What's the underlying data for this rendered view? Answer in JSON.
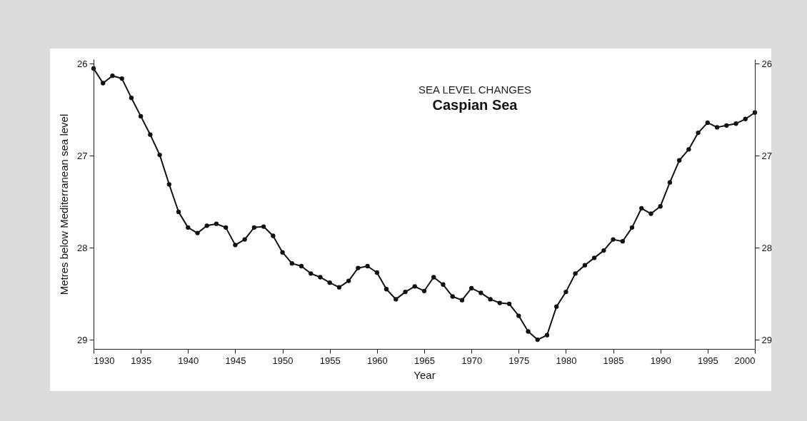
{
  "chart_data": {
    "type": "line",
    "title": "SEA LEVEL CHANGES",
    "subtitle": "Caspian Sea",
    "xlabel": "Year",
    "ylabel": "Metres below Mediterranean sea level",
    "x": [
      1930,
      1931,
      1932,
      1933,
      1934,
      1935,
      1936,
      1937,
      1938,
      1939,
      1940,
      1941,
      1942,
      1943,
      1944,
      1945,
      1946,
      1947,
      1948,
      1949,
      1950,
      1951,
      1952,
      1953,
      1954,
      1955,
      1956,
      1957,
      1958,
      1959,
      1960,
      1961,
      1962,
      1963,
      1964,
      1965,
      1966,
      1967,
      1968,
      1969,
      1970,
      1971,
      1972,
      1973,
      1974,
      1975,
      1976,
      1977,
      1978,
      1979,
      1980,
      1981,
      1982,
      1983,
      1984,
      1985,
      1986,
      1987,
      1988,
      1989,
      1990,
      1991,
      1992,
      1993,
      1994,
      1995,
      1996,
      1997,
      1998,
      1999,
      2000
    ],
    "series": [
      {
        "color": "#111111",
        "values": [
          26.05,
          26.21,
          26.13,
          26.16,
          26.37,
          26.57,
          26.77,
          26.99,
          27.31,
          27.61,
          27.78,
          27.84,
          27.76,
          27.74,
          27.78,
          27.97,
          27.91,
          27.78,
          27.77,
          27.87,
          28.05,
          28.17,
          28.2,
          28.28,
          28.32,
          28.38,
          28.43,
          28.36,
          28.22,
          28.2,
          28.27,
          28.45,
          28.56,
          28.48,
          28.42,
          28.47,
          28.32,
          28.4,
          28.53,
          28.57,
          28.44,
          28.49,
          28.56,
          28.6,
          28.61,
          28.74,
          28.91,
          29.0,
          28.95,
          28.64,
          28.48,
          28.28,
          28.19,
          28.11,
          28.03,
          27.91,
          27.93,
          27.78,
          27.57,
          27.63,
          27.55,
          27.29,
          27.05,
          26.93,
          26.75,
          26.64,
          26.69,
          26.67,
          26.65,
          26.6,
          26.53
        ]
      }
    ],
    "xlim": [
      1930,
      2000
    ],
    "xticks": [
      1930,
      1935,
      1940,
      1945,
      1950,
      1955,
      1960,
      1965,
      1970,
      1975,
      1980,
      1985,
      1990,
      1995,
      2000
    ],
    "ylim": [
      29.1,
      25.95
    ],
    "yticks": [
      26,
      27,
      28,
      29
    ],
    "y2lim": [
      29.1,
      25.95
    ],
    "y2ticks": [
      26,
      27,
      28,
      29
    ],
    "grid": false,
    "marker": "circle",
    "line_style": "solid"
  }
}
